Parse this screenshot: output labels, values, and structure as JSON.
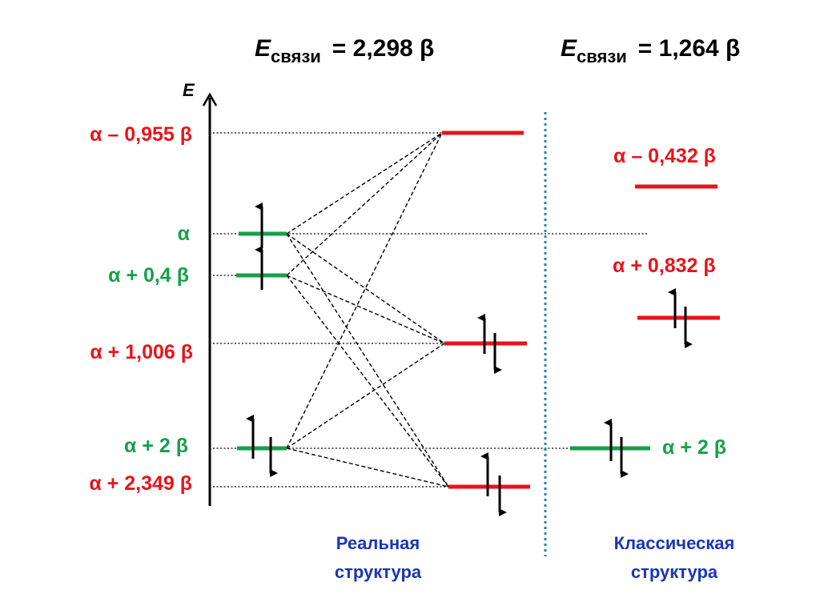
{
  "header": {
    "real": {
      "e_symbol": "E",
      "e_sub": "связи",
      "value": "= 2,298 β"
    },
    "classic": {
      "e_symbol": "E",
      "e_sub": "связи",
      "value": "= 1,264 β"
    }
  },
  "axis_label": "E",
  "left_levels": [
    {
      "text": "α – 0,955 β",
      "color": "#e8141b"
    },
    {
      "text": "α",
      "color": "#15a04a"
    },
    {
      "text": "α + 0,4 β",
      "color": "#15a04a"
    },
    {
      "text": "α + 1,006 β",
      "color": "#e8141b"
    },
    {
      "text": "α + 2 β",
      "color": "#15a04a"
    },
    {
      "text": "α + 2,349 β",
      "color": "#e8141b"
    }
  ],
  "classic_levels": [
    {
      "text": "α – 0,432 β",
      "color": "#e8141b"
    },
    {
      "text": "α + 0,832 β",
      "color": "#e8141b"
    },
    {
      "text": "α + 2 β",
      "color": "#15a04a"
    }
  ],
  "captions": {
    "real": [
      "Реальная",
      "структура"
    ],
    "classic": [
      "Классическая",
      "структура"
    ]
  },
  "colors": {
    "red": "#e8141b",
    "green": "#15a04a",
    "blue_caption": "#1a35b8",
    "divider": "#2a7fc0"
  }
}
